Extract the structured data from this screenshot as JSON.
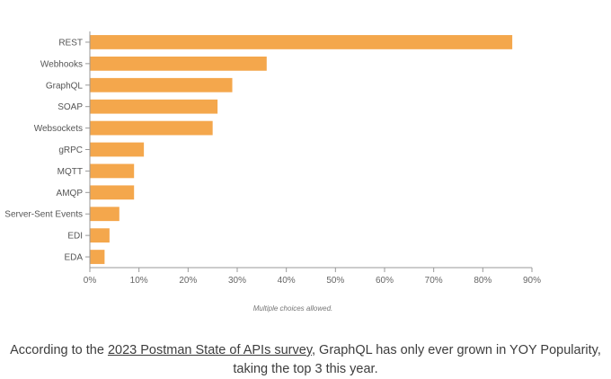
{
  "chart_data": {
    "type": "bar",
    "orientation": "horizontal",
    "categories": [
      "REST",
      "Webhooks",
      "GraphQL",
      "SOAP",
      "Websockets",
      "gRPC",
      "MQTT",
      "AMQP",
      "Server-Sent Events",
      "EDI",
      "EDA"
    ],
    "values": [
      86,
      36,
      29,
      26,
      25,
      11,
      9,
      9,
      6,
      4,
      3
    ],
    "xlim": [
      0,
      90
    ],
    "xticks": [
      "0%",
      "10%",
      "20%",
      "30%",
      "40%",
      "50%",
      "60%",
      "70%",
      "80%",
      "90%"
    ],
    "xtick_values": [
      0,
      10,
      20,
      30,
      40,
      50,
      60,
      70,
      80,
      90
    ],
    "grid": false,
    "bar_color": "#f4a74c",
    "note": "Multiple choices allowed."
  },
  "caption": {
    "prefix": "According to the ",
    "link_text": "2023 Postman State of APIs survey",
    "suffix": ", GraphQL has only ever grown in YOY Popularity, taking the top 3 this year."
  }
}
